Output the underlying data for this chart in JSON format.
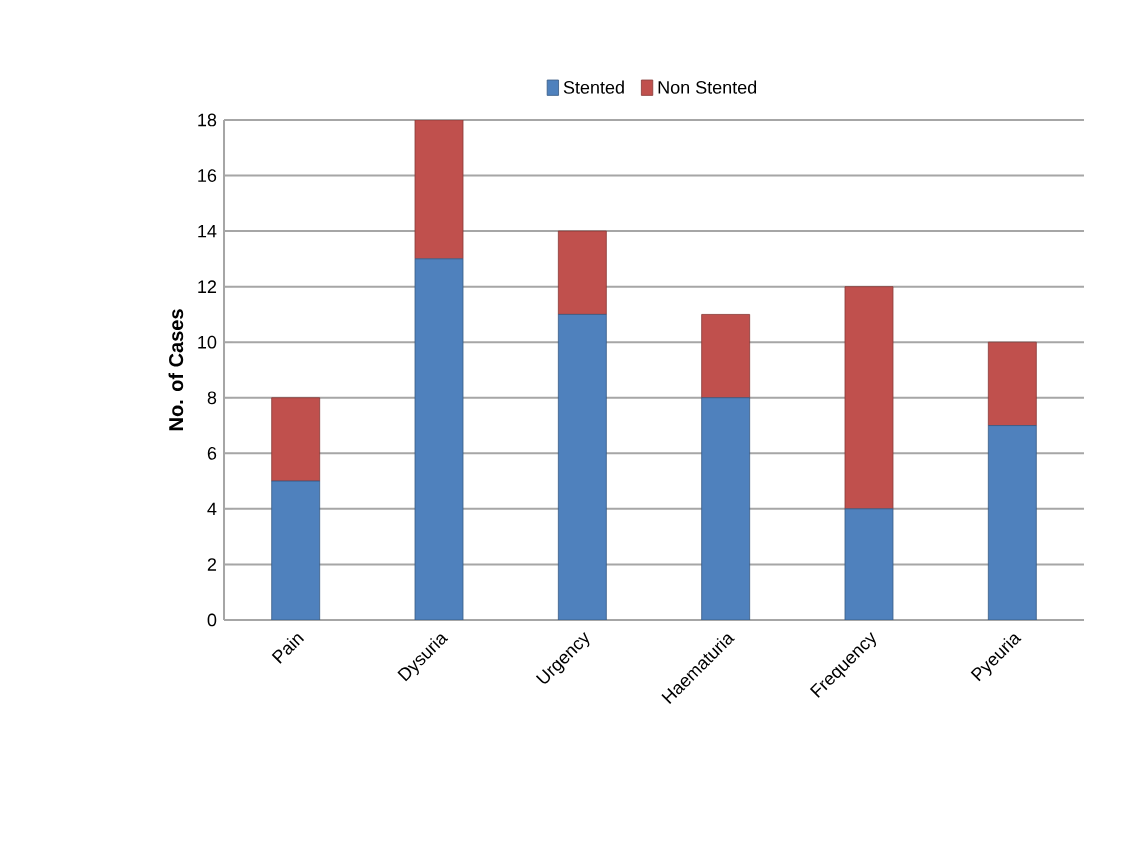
{
  "chart_data": {
    "type": "bar",
    "stacked": true,
    "ylabel": "No. of Cases",
    "categories": [
      "Pain",
      "Dysuria",
      "Urgency",
      "Haematuria",
      "Frequency",
      "Pyeuria"
    ],
    "series": [
      {
        "name": "Stented",
        "color": "#4f81bd",
        "values": [
          5,
          13,
          11,
          8,
          4,
          7
        ]
      },
      {
        "name": "Non Stented",
        "color": "#c0504d",
        "values": [
          3,
          5,
          3,
          3,
          8,
          3
        ]
      }
    ],
    "ylim": [
      0,
      18
    ],
    "yticks": [
      0,
      2,
      4,
      6,
      8,
      10,
      12,
      14,
      16,
      18
    ],
    "grid": "y",
    "legend": "top"
  }
}
